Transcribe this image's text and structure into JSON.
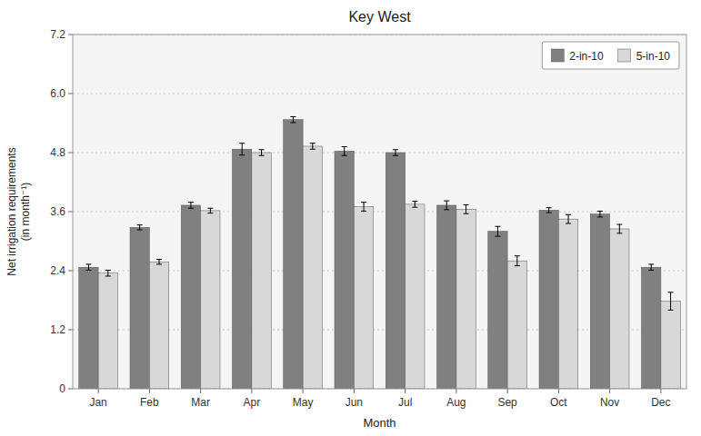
{
  "chart_data": {
    "type": "bar",
    "title": "Key West",
    "xlabel": "Month",
    "ylabel": "Net irrigation requirements\n(in month⁻¹)",
    "categories": [
      "Jan",
      "Feb",
      "Mar",
      "Apr",
      "May",
      "Jun",
      "Jul",
      "Aug",
      "Sep",
      "Oct",
      "Nov",
      "Dec"
    ],
    "series": [
      {
        "name": "2-in-10",
        "color": "#808080",
        "values": [
          2.47,
          3.28,
          3.73,
          4.87,
          5.47,
          4.83,
          4.8,
          3.73,
          3.2,
          3.63,
          3.55,
          2.47
        ],
        "errors": [
          0.06,
          0.05,
          0.06,
          0.12,
          0.06,
          0.09,
          0.06,
          0.09,
          0.1,
          0.05,
          0.06,
          0.06
        ]
      },
      {
        "name": "5-in-10",
        "color": "#d8d8d8",
        "values": [
          2.35,
          2.58,
          3.62,
          4.8,
          4.93,
          3.7,
          3.75,
          3.65,
          2.6,
          3.45,
          3.25,
          1.78
        ],
        "errors": [
          0.06,
          0.05,
          0.05,
          0.06,
          0.06,
          0.09,
          0.06,
          0.09,
          0.1,
          0.09,
          0.09,
          0.18
        ]
      }
    ],
    "ylim": [
      0,
      7.2
    ],
    "yticks": [
      0,
      1.2,
      2.4,
      3.6,
      4.8,
      {
        "value": 6.0,
        "label": "6.0"
      },
      7.2
    ],
    "grid": true,
    "legend": "upper-right"
  }
}
